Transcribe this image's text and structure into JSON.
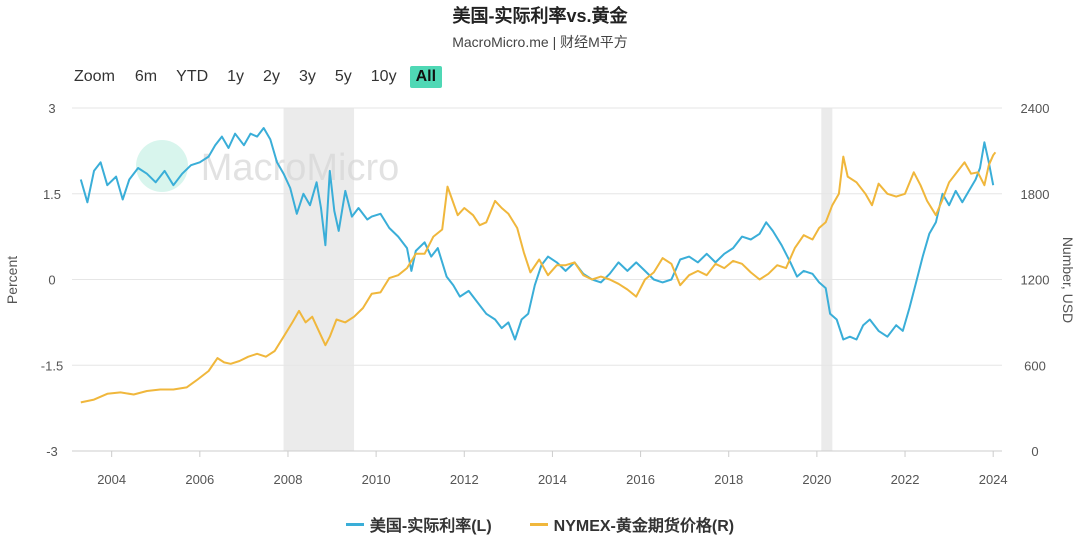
{
  "header": {
    "title": "美国-实际利率vs.黄金",
    "subtitle": "MacroMicro.me | 财经M平方"
  },
  "zoom": {
    "label": "Zoom",
    "buttons": [
      "6m",
      "YTD",
      "1y",
      "2y",
      "3y",
      "5y",
      "10y",
      "All"
    ],
    "active": "All"
  },
  "watermark": "MacroMicro",
  "colors": {
    "real_rate": "#3aaed8",
    "gold": "#f0b73c",
    "recession": "#ebebeb",
    "active_zoom": "#4fd8b5"
  },
  "chart_data": {
    "type": "line",
    "xlim": [
      2003.1,
      2024.2
    ],
    "x_ticks": [
      "2004",
      "2006",
      "2008",
      "2010",
      "2012",
      "2014",
      "2016",
      "2018",
      "2020",
      "2022",
      "2024"
    ],
    "y_left": {
      "label": "Percent",
      "lim": [
        -3,
        3
      ],
      "ticks": [
        "3",
        "1.5",
        "0",
        "-1.5",
        "-3"
      ]
    },
    "y_right": {
      "label": "Number, USD",
      "lim": [
        0,
        2400
      ],
      "ticks": [
        "2400",
        "1800",
        "1200",
        "600",
        "0"
      ]
    },
    "recessions": [
      [
        2007.9,
        2009.5
      ],
      [
        2020.1,
        2020.35
      ]
    ],
    "grid": true,
    "legend_position": "bottom",
    "series": [
      {
        "name": "美国-实际利率(L)",
        "axis": "left",
        "points": [
          [
            2003.3,
            1.75
          ],
          [
            2003.45,
            1.35
          ],
          [
            2003.6,
            1.9
          ],
          [
            2003.75,
            2.05
          ],
          [
            2003.9,
            1.65
          ],
          [
            2004.1,
            1.8
          ],
          [
            2004.25,
            1.4
          ],
          [
            2004.4,
            1.75
          ],
          [
            2004.6,
            1.95
          ],
          [
            2004.8,
            1.85
          ],
          [
            2005.0,
            1.7
          ],
          [
            2005.2,
            1.9
          ],
          [
            2005.4,
            1.65
          ],
          [
            2005.6,
            1.85
          ],
          [
            2005.8,
            2.0
          ],
          [
            2006.0,
            2.05
          ],
          [
            2006.2,
            2.15
          ],
          [
            2006.35,
            2.35
          ],
          [
            2006.5,
            2.5
          ],
          [
            2006.65,
            2.3
          ],
          [
            2006.8,
            2.55
          ],
          [
            2007.0,
            2.35
          ],
          [
            2007.15,
            2.55
          ],
          [
            2007.3,
            2.5
          ],
          [
            2007.45,
            2.65
          ],
          [
            2007.6,
            2.45
          ],
          [
            2007.75,
            2.05
          ],
          [
            2007.9,
            1.85
          ],
          [
            2008.05,
            1.6
          ],
          [
            2008.2,
            1.15
          ],
          [
            2008.35,
            1.5
          ],
          [
            2008.5,
            1.3
          ],
          [
            2008.65,
            1.7
          ],
          [
            2008.75,
            1.25
          ],
          [
            2008.85,
            0.6
          ],
          [
            2008.95,
            1.9
          ],
          [
            2009.05,
            1.2
          ],
          [
            2009.15,
            0.85
          ],
          [
            2009.3,
            1.55
          ],
          [
            2009.45,
            1.1
          ],
          [
            2009.6,
            1.25
          ],
          [
            2009.8,
            1.05
          ],
          [
            2009.9,
            1.1
          ],
          [
            2010.1,
            1.15
          ],
          [
            2010.3,
            0.9
          ],
          [
            2010.5,
            0.75
          ],
          [
            2010.7,
            0.55
          ],
          [
            2010.8,
            0.15
          ],
          [
            2010.9,
            0.5
          ],
          [
            2011.1,
            0.65
          ],
          [
            2011.25,
            0.4
          ],
          [
            2011.4,
            0.55
          ],
          [
            2011.6,
            0.05
          ],
          [
            2011.75,
            -0.1
          ],
          [
            2011.9,
            -0.3
          ],
          [
            2012.1,
            -0.2
          ],
          [
            2012.3,
            -0.4
          ],
          [
            2012.5,
            -0.6
          ],
          [
            2012.7,
            -0.7
          ],
          [
            2012.85,
            -0.85
          ],
          [
            2013.0,
            -0.75
          ],
          [
            2013.15,
            -1.05
          ],
          [
            2013.3,
            -0.7
          ],
          [
            2013.45,
            -0.6
          ],
          [
            2013.6,
            -0.1
          ],
          [
            2013.75,
            0.25
          ],
          [
            2013.9,
            0.4
          ],
          [
            2014.1,
            0.3
          ],
          [
            2014.3,
            0.15
          ],
          [
            2014.5,
            0.3
          ],
          [
            2014.7,
            0.1
          ],
          [
            2014.9,
            0.0
          ],
          [
            2015.1,
            -0.05
          ],
          [
            2015.3,
            0.1
          ],
          [
            2015.5,
            0.3
          ],
          [
            2015.7,
            0.15
          ],
          [
            2015.9,
            0.3
          ],
          [
            2016.1,
            0.15
          ],
          [
            2016.3,
            0.0
          ],
          [
            2016.5,
            -0.05
          ],
          [
            2016.7,
            0.0
          ],
          [
            2016.9,
            0.35
          ],
          [
            2017.1,
            0.4
          ],
          [
            2017.3,
            0.3
          ],
          [
            2017.5,
            0.45
          ],
          [
            2017.7,
            0.3
          ],
          [
            2017.9,
            0.45
          ],
          [
            2018.1,
            0.55
          ],
          [
            2018.3,
            0.75
          ],
          [
            2018.5,
            0.7
          ],
          [
            2018.7,
            0.8
          ],
          [
            2018.85,
            1.0
          ],
          [
            2019.0,
            0.85
          ],
          [
            2019.2,
            0.6
          ],
          [
            2019.4,
            0.3
          ],
          [
            2019.55,
            0.05
          ],
          [
            2019.7,
            0.15
          ],
          [
            2019.9,
            0.1
          ],
          [
            2020.05,
            -0.05
          ],
          [
            2020.2,
            -0.15
          ],
          [
            2020.3,
            -0.6
          ],
          [
            2020.45,
            -0.7
          ],
          [
            2020.6,
            -1.05
          ],
          [
            2020.75,
            -1.0
          ],
          [
            2020.9,
            -1.05
          ],
          [
            2021.05,
            -0.8
          ],
          [
            2021.2,
            -0.7
          ],
          [
            2021.4,
            -0.9
          ],
          [
            2021.6,
            -1.0
          ],
          [
            2021.8,
            -0.8
          ],
          [
            2021.95,
            -0.9
          ],
          [
            2022.1,
            -0.5
          ],
          [
            2022.25,
            -0.05
          ],
          [
            2022.4,
            0.4
          ],
          [
            2022.55,
            0.8
          ],
          [
            2022.7,
            1.0
          ],
          [
            2022.85,
            1.5
          ],
          [
            2023.0,
            1.3
          ],
          [
            2023.15,
            1.55
          ],
          [
            2023.3,
            1.35
          ],
          [
            2023.45,
            1.55
          ],
          [
            2023.6,
            1.75
          ],
          [
            2023.7,
            1.95
          ],
          [
            2023.8,
            2.4
          ],
          [
            2023.9,
            2.05
          ],
          [
            2024.0,
            1.65
          ]
        ]
      },
      {
        "name": "NYMEX-黄金期货价格(R)",
        "axis": "right",
        "points": [
          [
            2003.3,
            340
          ],
          [
            2003.6,
            360
          ],
          [
            2003.9,
            400
          ],
          [
            2004.2,
            410
          ],
          [
            2004.5,
            395
          ],
          [
            2004.8,
            420
          ],
          [
            2005.1,
            430
          ],
          [
            2005.4,
            430
          ],
          [
            2005.7,
            445
          ],
          [
            2005.95,
            500
          ],
          [
            2006.2,
            560
          ],
          [
            2006.4,
            650
          ],
          [
            2006.55,
            620
          ],
          [
            2006.7,
            610
          ],
          [
            2006.9,
            630
          ],
          [
            2007.1,
            660
          ],
          [
            2007.3,
            680
          ],
          [
            2007.5,
            660
          ],
          [
            2007.7,
            700
          ],
          [
            2007.9,
            800
          ],
          [
            2008.1,
            900
          ],
          [
            2008.25,
            980
          ],
          [
            2008.4,
            900
          ],
          [
            2008.55,
            940
          ],
          [
            2008.7,
            840
          ],
          [
            2008.85,
            740
          ],
          [
            2008.95,
            800
          ],
          [
            2009.1,
            920
          ],
          [
            2009.3,
            900
          ],
          [
            2009.5,
            940
          ],
          [
            2009.7,
            1000
          ],
          [
            2009.9,
            1100
          ],
          [
            2010.1,
            1110
          ],
          [
            2010.3,
            1210
          ],
          [
            2010.5,
            1230
          ],
          [
            2010.7,
            1280
          ],
          [
            2010.9,
            1380
          ],
          [
            2011.1,
            1380
          ],
          [
            2011.3,
            1500
          ],
          [
            2011.5,
            1550
          ],
          [
            2011.62,
            1850
          ],
          [
            2011.7,
            1780
          ],
          [
            2011.85,
            1650
          ],
          [
            2012.0,
            1700
          ],
          [
            2012.2,
            1650
          ],
          [
            2012.35,
            1580
          ],
          [
            2012.5,
            1600
          ],
          [
            2012.7,
            1750
          ],
          [
            2012.85,
            1700
          ],
          [
            2013.0,
            1660
          ],
          [
            2013.2,
            1560
          ],
          [
            2013.35,
            1390
          ],
          [
            2013.5,
            1250
          ],
          [
            2013.7,
            1340
          ],
          [
            2013.9,
            1230
          ],
          [
            2014.1,
            1300
          ],
          [
            2014.3,
            1300
          ],
          [
            2014.5,
            1320
          ],
          [
            2014.7,
            1230
          ],
          [
            2014.9,
            1200
          ],
          [
            2015.1,
            1220
          ],
          [
            2015.3,
            1200
          ],
          [
            2015.5,
            1170
          ],
          [
            2015.7,
            1130
          ],
          [
            2015.9,
            1080
          ],
          [
            2016.1,
            1200
          ],
          [
            2016.3,
            1250
          ],
          [
            2016.5,
            1350
          ],
          [
            2016.7,
            1310
          ],
          [
            2016.9,
            1160
          ],
          [
            2017.1,
            1230
          ],
          [
            2017.3,
            1260
          ],
          [
            2017.5,
            1230
          ],
          [
            2017.7,
            1310
          ],
          [
            2017.9,
            1280
          ],
          [
            2018.1,
            1330
          ],
          [
            2018.3,
            1310
          ],
          [
            2018.5,
            1250
          ],
          [
            2018.7,
            1200
          ],
          [
            2018.9,
            1240
          ],
          [
            2019.1,
            1300
          ],
          [
            2019.3,
            1280
          ],
          [
            2019.5,
            1420
          ],
          [
            2019.7,
            1510
          ],
          [
            2019.9,
            1480
          ],
          [
            2020.05,
            1560
          ],
          [
            2020.2,
            1600
          ],
          [
            2020.35,
            1720
          ],
          [
            2020.5,
            1800
          ],
          [
            2020.6,
            2060
          ],
          [
            2020.7,
            1920
          ],
          [
            2020.9,
            1880
          ],
          [
            2021.1,
            1800
          ],
          [
            2021.25,
            1720
          ],
          [
            2021.4,
            1870
          ],
          [
            2021.6,
            1800
          ],
          [
            2021.8,
            1780
          ],
          [
            2022.0,
            1800
          ],
          [
            2022.2,
            1950
          ],
          [
            2022.35,
            1860
          ],
          [
            2022.5,
            1750
          ],
          [
            2022.7,
            1650
          ],
          [
            2022.85,
            1760
          ],
          [
            2023.0,
            1880
          ],
          [
            2023.2,
            1960
          ],
          [
            2023.35,
            2020
          ],
          [
            2023.5,
            1940
          ],
          [
            2023.65,
            1950
          ],
          [
            2023.8,
            1860
          ],
          [
            2023.9,
            2000
          ],
          [
            2024.0,
            2070
          ],
          [
            2024.05,
            2090
          ]
        ]
      }
    ]
  }
}
